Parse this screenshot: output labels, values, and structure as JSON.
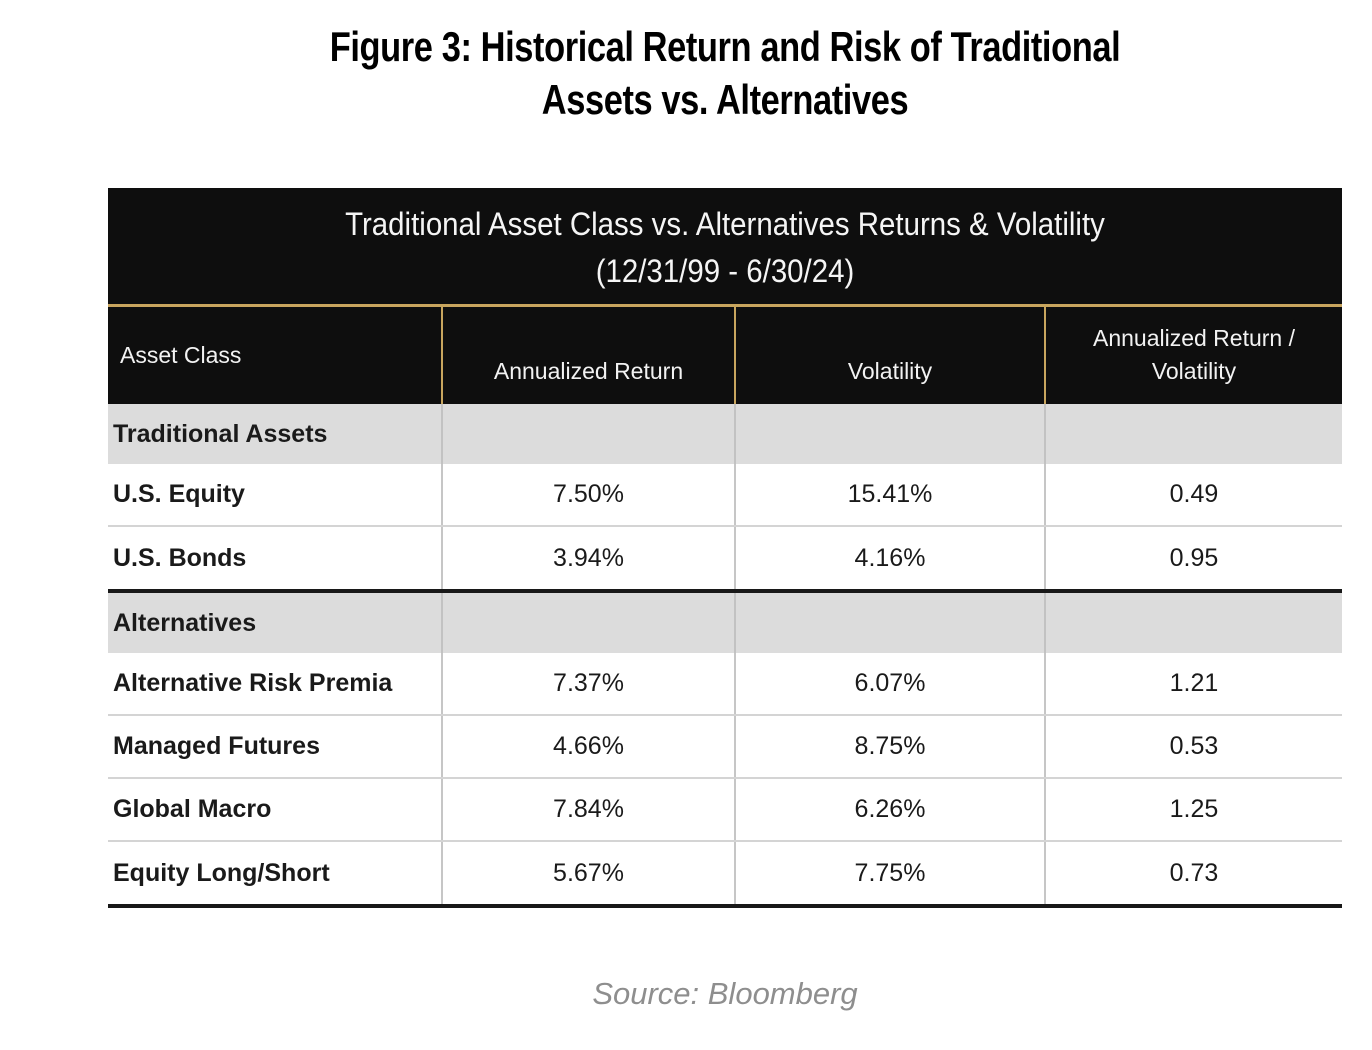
{
  "figure": {
    "title_line1": "Figure 3: Historical Return and Risk of Traditional",
    "title_line2": "Assets vs. Alternatives",
    "source": "Source: Bloomberg"
  },
  "table": {
    "banner_line1": "Traditional Asset Class vs. Alternatives Returns & Volatility",
    "banner_line2": "(12/31/99 - 6/30/24)",
    "columns": [
      "Asset Class",
      "Annualized Return",
      "Volatility",
      "Annualized Return / Volatility"
    ],
    "sections": [
      {
        "label": "Traditional Assets",
        "rows": [
          {
            "asset": "U.S. Equity",
            "ret": "7.50%",
            "vol": "15.41%",
            "ratio": "0.49"
          },
          {
            "asset": "U.S. Bonds",
            "ret": "3.94%",
            "vol": "4.16%",
            "ratio": "0.95"
          }
        ]
      },
      {
        "label": "Alternatives",
        "rows": [
          {
            "asset": "Alternative Risk Premia",
            "ret": "7.37%",
            "vol": "6.07%",
            "ratio": "1.21"
          },
          {
            "asset": "Managed Futures",
            "ret": "4.66%",
            "vol": "8.75%",
            "ratio": "0.53"
          },
          {
            "asset": "Global Macro",
            "ret": "7.84%",
            "vol": "6.26%",
            "ratio": "1.25"
          },
          {
            "asset": "Equity Long/Short",
            "ret": "5.67%",
            "vol": "7.75%",
            "ratio": "0.73"
          }
        ]
      }
    ],
    "colors": {
      "gold_rule": "#c8a55e",
      "header_bg": "#0e0e0e",
      "section_row_bg": "#dcdcdc",
      "source_text": "#8e8e8e"
    }
  },
  "chart_data": {
    "type": "table",
    "title": "Traditional Asset Class vs. Alternatives Returns & Volatility (12/31/99 - 6/30/24)",
    "columns": [
      "Asset Class",
      "Annualized Return",
      "Volatility",
      "Annualized Return / Volatility"
    ],
    "rows": [
      [
        "Traditional Assets",
        "",
        "",
        ""
      ],
      [
        "U.S. Equity",
        "7.50%",
        "15.41%",
        "0.49"
      ],
      [
        "U.S. Bonds",
        "3.94%",
        "4.16%",
        "0.95"
      ],
      [
        "Alternatives",
        "",
        "",
        ""
      ],
      [
        "Alternative Risk Premia",
        "7.37%",
        "6.07%",
        "1.21"
      ],
      [
        "Managed Futures",
        "4.66%",
        "8.75%",
        "0.53"
      ],
      [
        "Global Macro",
        "7.84%",
        "6.26%",
        "1.25"
      ],
      [
        "Equity Long/Short",
        "5.67%",
        "7.75%",
        "0.73"
      ]
    ]
  }
}
